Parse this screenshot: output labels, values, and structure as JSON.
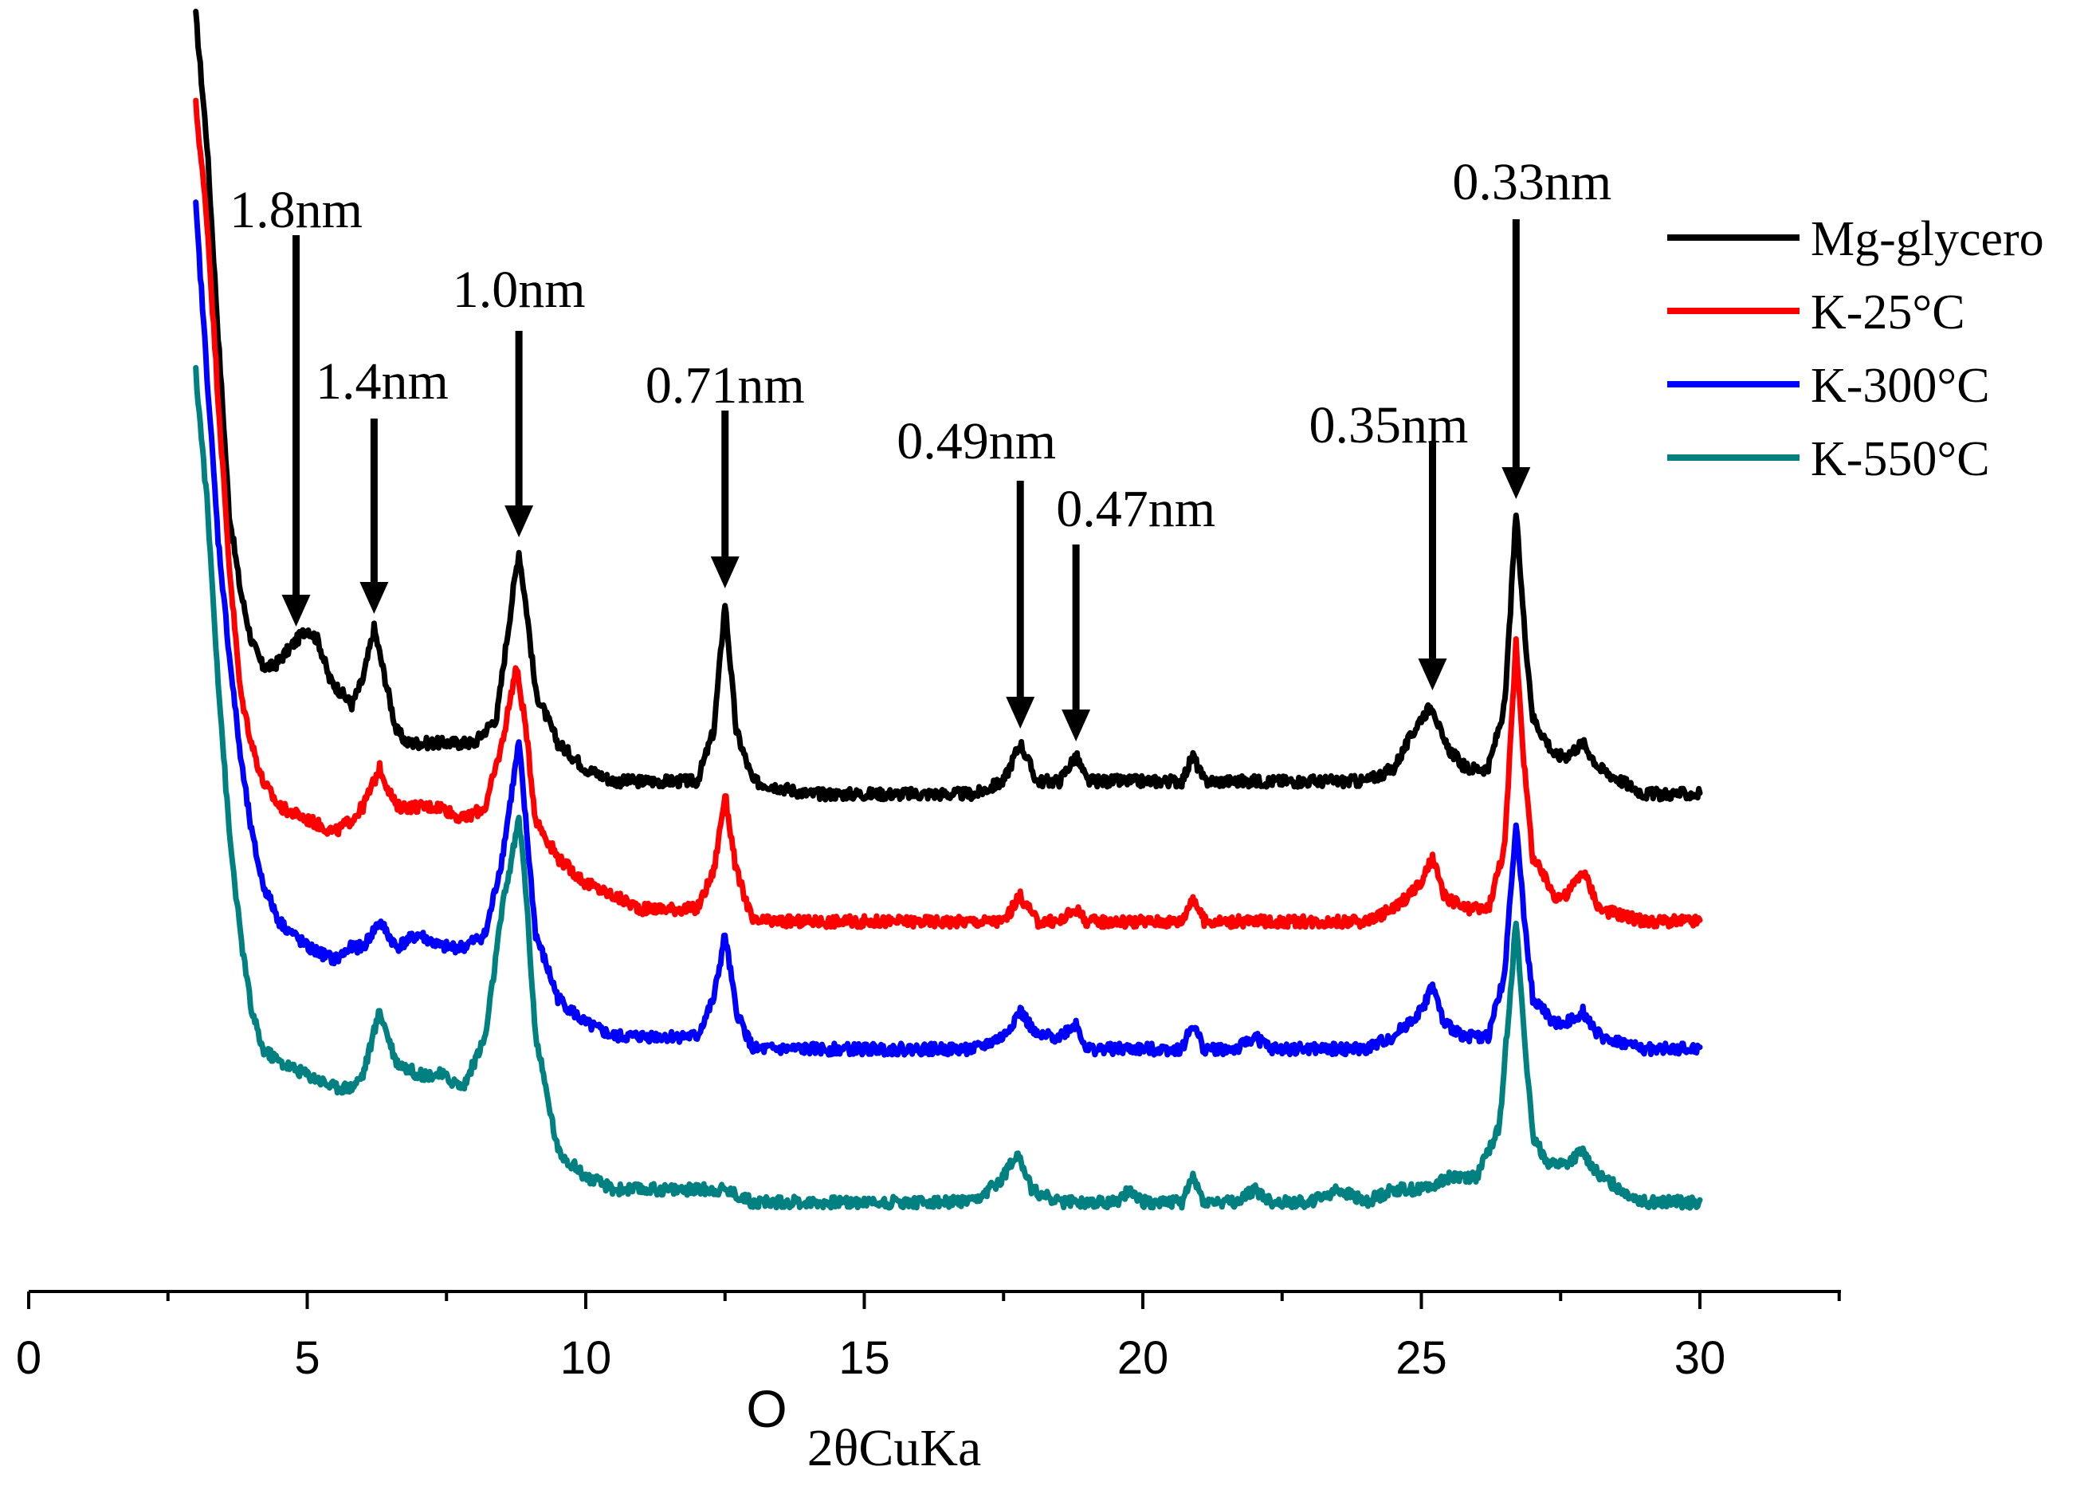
{
  "chart_data": {
    "type": "line",
    "title": "",
    "xlabel_symbol": "O",
    "xlabel": "2θCuKa",
    "ylabel": "",
    "xlim": [
      0,
      32.5
    ],
    "x_ticks": [
      0,
      5,
      10,
      15,
      20,
      25,
      30
    ],
    "x_tick_labels": [
      "0",
      "5",
      "10",
      "15",
      "20",
      "25",
      "30"
    ],
    "legend_position": "top-right",
    "series": [
      {
        "name": "Mg-glycero",
        "color": "#000000",
        "points": [
          [
            3.0,
            100
          ],
          [
            3.2,
            90
          ],
          [
            3.4,
            75
          ],
          [
            3.6,
            61
          ],
          [
            3.8,
            55
          ],
          [
            4.0,
            51
          ],
          [
            4.2,
            49
          ],
          [
            4.4,
            49
          ],
          [
            4.6,
            50
          ],
          [
            4.8,
            51
          ],
          [
            5.0,
            52
          ],
          [
            5.2,
            51
          ],
          [
            5.4,
            48
          ],
          [
            5.6,
            47
          ],
          [
            5.8,
            46
          ],
          [
            6.0,
            48
          ],
          [
            6.2,
            52
          ],
          [
            6.4,
            48
          ],
          [
            6.6,
            44
          ],
          [
            6.8,
            43
          ],
          [
            7.2,
            43
          ],
          [
            7.6,
            43
          ],
          [
            8.0,
            43
          ],
          [
            8.4,
            45
          ],
          [
            8.7,
            55
          ],
          [
            8.8,
            58
          ],
          [
            8.95,
            53
          ],
          [
            9.1,
            47
          ],
          [
            9.5,
            43
          ],
          [
            10.0,
            41
          ],
          [
            10.5,
            40
          ],
          [
            11.0,
            40
          ],
          [
            11.5,
            40
          ],
          [
            12.0,
            40
          ],
          [
            12.3,
            44
          ],
          [
            12.5,
            54
          ],
          [
            12.7,
            44
          ],
          [
            13.0,
            40
          ],
          [
            14.0,
            39
          ],
          [
            15.0,
            39
          ],
          [
            16.0,
            39
          ],
          [
            17.0,
            39
          ],
          [
            17.5,
            40
          ],
          [
            17.8,
            43
          ],
          [
            18.1,
            40
          ],
          [
            18.5,
            40
          ],
          [
            18.8,
            42
          ],
          [
            19.0,
            40
          ],
          [
            19.5,
            40
          ],
          [
            20.0,
            40
          ],
          [
            20.7,
            40
          ],
          [
            20.9,
            42
          ],
          [
            21.1,
            40
          ],
          [
            21.7,
            40
          ],
          [
            22.0,
            40
          ],
          [
            22.3,
            40
          ],
          [
            23.0,
            40
          ],
          [
            24.0,
            40
          ],
          [
            24.5,
            41
          ],
          [
            25.0,
            45
          ],
          [
            25.2,
            46
          ],
          [
            25.4,
            43
          ],
          [
            25.8,
            41
          ],
          [
            26.2,
            41
          ],
          [
            26.5,
            46
          ],
          [
            26.7,
            61
          ],
          [
            26.85,
            52
          ],
          [
            27.0,
            45
          ],
          [
            27.4,
            42
          ],
          [
            27.6,
            42
          ],
          [
            27.9,
            43
          ],
          [
            28.2,
            41
          ],
          [
            29.0,
            39
          ],
          [
            30.0,
            39
          ]
        ]
      },
      {
        "name": "K-25°C",
        "color": "#ff0000",
        "points": [
          [
            3.0,
            93
          ],
          [
            3.2,
            84
          ],
          [
            3.4,
            70
          ],
          [
            3.6,
            57
          ],
          [
            3.8,
            47
          ],
          [
            4.0,
            43
          ],
          [
            4.2,
            40
          ],
          [
            4.5,
            38
          ],
          [
            5.0,
            37
          ],
          [
            5.5,
            36
          ],
          [
            5.8,
            37
          ],
          [
            6.0,
            38
          ],
          [
            6.3,
            41
          ],
          [
            6.6,
            38
          ],
          [
            7.0,
            38
          ],
          [
            7.4,
            38
          ],
          [
            7.8,
            37
          ],
          [
            8.2,
            38
          ],
          [
            8.5,
            43
          ],
          [
            8.75,
            49
          ],
          [
            8.9,
            45
          ],
          [
            9.1,
            37
          ],
          [
            9.5,
            34
          ],
          [
            10.0,
            32
          ],
          [
            10.5,
            31
          ],
          [
            11.0,
            30
          ],
          [
            11.5,
            30
          ],
          [
            12.0,
            30
          ],
          [
            12.3,
            33
          ],
          [
            12.5,
            39
          ],
          [
            12.7,
            33
          ],
          [
            13.0,
            29
          ],
          [
            14.0,
            29
          ],
          [
            15.0,
            29
          ],
          [
            16.0,
            29
          ],
          [
            17.0,
            29
          ],
          [
            17.5,
            29
          ],
          [
            17.8,
            31
          ],
          [
            18.1,
            29
          ],
          [
            18.5,
            29
          ],
          [
            18.8,
            30
          ],
          [
            19.0,
            29
          ],
          [
            19.5,
            29
          ],
          [
            20.0,
            29
          ],
          [
            20.7,
            29
          ],
          [
            20.9,
            31
          ],
          [
            21.1,
            29
          ],
          [
            21.7,
            29
          ],
          [
            22.0,
            29
          ],
          [
            22.3,
            29
          ],
          [
            23.0,
            29
          ],
          [
            24.0,
            29
          ],
          [
            24.5,
            30
          ],
          [
            25.0,
            32
          ],
          [
            25.2,
            34
          ],
          [
            25.4,
            31
          ],
          [
            25.8,
            30
          ],
          [
            26.2,
            30
          ],
          [
            26.5,
            35
          ],
          [
            26.7,
            51
          ],
          [
            26.85,
            41
          ],
          [
            27.0,
            34
          ],
          [
            27.4,
            31
          ],
          [
            27.6,
            31
          ],
          [
            27.9,
            33
          ],
          [
            28.2,
            30
          ],
          [
            29.0,
            29
          ],
          [
            30.0,
            29
          ]
        ]
      },
      {
        "name": "K-300°C",
        "color": "#0000ff",
        "points": [
          [
            3.0,
            85
          ],
          [
            3.2,
            72
          ],
          [
            3.4,
            59
          ],
          [
            3.6,
            50
          ],
          [
            3.8,
            42
          ],
          [
            4.0,
            36
          ],
          [
            4.2,
            32
          ],
          [
            4.5,
            29
          ],
          [
            5.0,
            27
          ],
          [
            5.5,
            26
          ],
          [
            5.8,
            27
          ],
          [
            6.0,
            27
          ],
          [
            6.3,
            29
          ],
          [
            6.6,
            27
          ],
          [
            7.0,
            28
          ],
          [
            7.4,
            27
          ],
          [
            7.8,
            27
          ],
          [
            8.2,
            28
          ],
          [
            8.5,
            34
          ],
          [
            8.8,
            43
          ],
          [
            8.9,
            38
          ],
          [
            9.1,
            28
          ],
          [
            9.5,
            23
          ],
          [
            10.0,
            21
          ],
          [
            10.5,
            20
          ],
          [
            11.0,
            20
          ],
          [
            11.5,
            20
          ],
          [
            12.0,
            20
          ],
          [
            12.3,
            23
          ],
          [
            12.5,
            28
          ],
          [
            12.7,
            22
          ],
          [
            13.0,
            19
          ],
          [
            14.0,
            19
          ],
          [
            15.0,
            19
          ],
          [
            16.0,
            19
          ],
          [
            17.0,
            19
          ],
          [
            17.5,
            20
          ],
          [
            17.8,
            22
          ],
          [
            18.1,
            20
          ],
          [
            18.5,
            20
          ],
          [
            18.8,
            21
          ],
          [
            19.0,
            19
          ],
          [
            19.5,
            19
          ],
          [
            20.0,
            19
          ],
          [
            20.7,
            19
          ],
          [
            20.9,
            21
          ],
          [
            21.1,
            19
          ],
          [
            21.7,
            19
          ],
          [
            22.0,
            20
          ],
          [
            22.3,
            19
          ],
          [
            23.0,
            19
          ],
          [
            24.0,
            19
          ],
          [
            24.5,
            20
          ],
          [
            25.0,
            22
          ],
          [
            25.2,
            24
          ],
          [
            25.4,
            21
          ],
          [
            25.8,
            20
          ],
          [
            26.2,
            20
          ],
          [
            26.5,
            25
          ],
          [
            26.7,
            37
          ],
          [
            26.85,
            29
          ],
          [
            27.0,
            23
          ],
          [
            27.4,
            21
          ],
          [
            27.6,
            21
          ],
          [
            27.9,
            22
          ],
          [
            28.2,
            20
          ],
          [
            29.0,
            19
          ],
          [
            30.0,
            19
          ]
        ]
      },
      {
        "name": "K-550°C",
        "color": "#008080",
        "points": [
          [
            3.0,
            72
          ],
          [
            3.2,
            62
          ],
          [
            3.4,
            48
          ],
          [
            3.6,
            36
          ],
          [
            3.8,
            28
          ],
          [
            4.0,
            22
          ],
          [
            4.2,
            19
          ],
          [
            4.5,
            18
          ],
          [
            5.0,
            17
          ],
          [
            5.5,
            16
          ],
          [
            5.8,
            16
          ],
          [
            6.0,
            17
          ],
          [
            6.3,
            22
          ],
          [
            6.6,
            18
          ],
          [
            7.0,
            17
          ],
          [
            7.4,
            17
          ],
          [
            7.8,
            16
          ],
          [
            8.2,
            20
          ],
          [
            8.5,
            30
          ],
          [
            8.8,
            37
          ],
          [
            8.9,
            33
          ],
          [
            9.1,
            20
          ],
          [
            9.5,
            11
          ],
          [
            10.0,
            9
          ],
          [
            10.5,
            8
          ],
          [
            11.0,
            8
          ],
          [
            11.5,
            8
          ],
          [
            12.0,
            8
          ],
          [
            12.5,
            8
          ],
          [
            13.0,
            7
          ],
          [
            14.0,
            7
          ],
          [
            15.0,
            7
          ],
          [
            16.0,
            7
          ],
          [
            17.0,
            7
          ],
          [
            17.5,
            9
          ],
          [
            17.75,
            11
          ],
          [
            18.0,
            8
          ],
          [
            18.5,
            7
          ],
          [
            19.0,
            7
          ],
          [
            19.5,
            7
          ],
          [
            19.8,
            8
          ],
          [
            20.0,
            7
          ],
          [
            20.7,
            7
          ],
          [
            20.9,
            9
          ],
          [
            21.1,
            7
          ],
          [
            21.7,
            7
          ],
          [
            22.0,
            8
          ],
          [
            22.3,
            7
          ],
          [
            23.0,
            7
          ],
          [
            23.5,
            8
          ],
          [
            24.0,
            7
          ],
          [
            24.5,
            8
          ],
          [
            25.0,
            8
          ],
          [
            25.5,
            9
          ],
          [
            26.0,
            9
          ],
          [
            26.4,
            13
          ],
          [
            26.7,
            29
          ],
          [
            26.85,
            20
          ],
          [
            27.0,
            12
          ],
          [
            27.3,
            10
          ],
          [
            27.6,
            10
          ],
          [
            27.9,
            11
          ],
          [
            28.2,
            9
          ],
          [
            29.0,
            7
          ],
          [
            30.0,
            7
          ]
        ]
      }
    ],
    "annotations": [
      {
        "text": "1.8nm",
        "x": 4.8
      },
      {
        "text": "1.4nm",
        "x": 6.2
      },
      {
        "text": "1.0nm",
        "x": 8.8
      },
      {
        "text": "0.71nm",
        "x": 12.5
      },
      {
        "text": "0.49nm",
        "x": 17.8
      },
      {
        "text": "0.47nm",
        "x": 18.8
      },
      {
        "text": "0.35nm",
        "x": 25.2
      },
      {
        "text": "0.33nm",
        "x": 26.7
      }
    ]
  }
}
